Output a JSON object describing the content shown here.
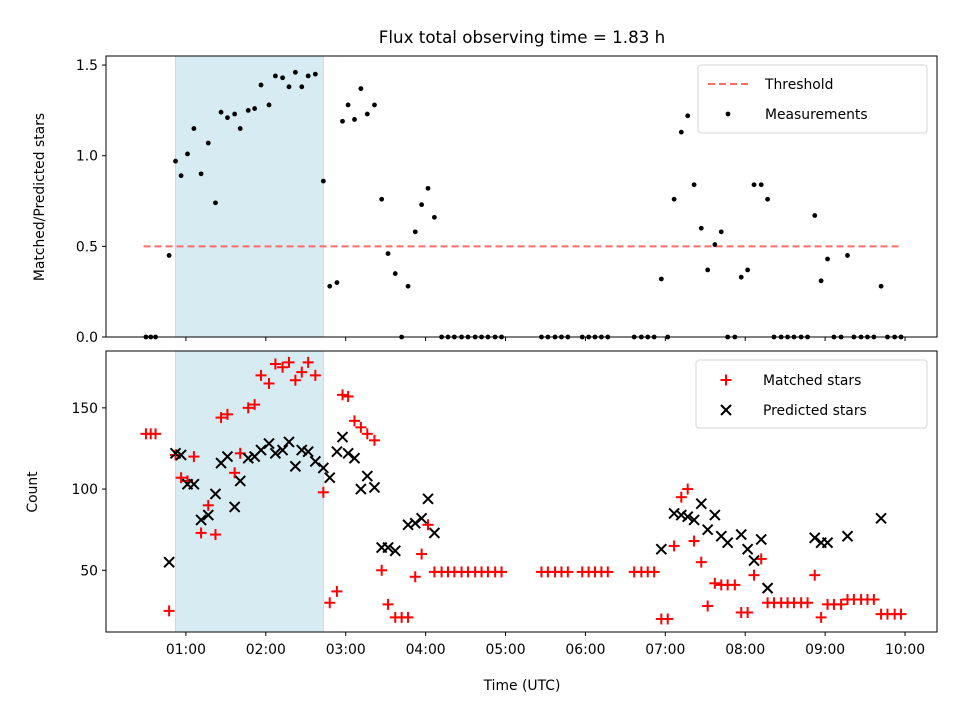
{
  "chart_data": [
    {
      "type": "scatter",
      "title": "Flux total observing time = 1.83 h",
      "xlabel": "",
      "ylabel": "Matched/Predicted stars",
      "xlim": [
        0.0,
        10.4
      ],
      "ylim": [
        0,
        1.55
      ],
      "yticks": [
        0,
        0.5,
        1.0,
        1.5
      ],
      "yticklabels": [
        "0.0",
        "0.5",
        "1.0",
        "1.5"
      ],
      "shaded_span": [
        0.87,
        2.72
      ],
      "legend_position": "top-right",
      "threshold": {
        "name": "Threshold",
        "value": 0.5,
        "x_range": [
          0.47,
          9.97
        ],
        "color": "#ff6b6b"
      },
      "series": [
        {
          "name": "Measurements",
          "color": "#000000",
          "points": [
            [
              0.5,
              0
            ],
            [
              0.56,
              0
            ],
            [
              0.62,
              0
            ],
            [
              0.79,
              0.45
            ],
            [
              0.87,
              0.97
            ],
            [
              0.94,
              0.89
            ],
            [
              1.02,
              1.01
            ],
            [
              1.1,
              1.15
            ],
            [
              1.19,
              0.9
            ],
            [
              1.28,
              1.07
            ],
            [
              1.37,
              0.74
            ],
            [
              1.44,
              1.24
            ],
            [
              1.52,
              1.21
            ],
            [
              1.61,
              1.23
            ],
            [
              1.68,
              1.15
            ],
            [
              1.78,
              1.25
            ],
            [
              1.86,
              1.26
            ],
            [
              1.94,
              1.39
            ],
            [
              2.04,
              1.28
            ],
            [
              2.12,
              1.44
            ],
            [
              2.21,
              1.43
            ],
            [
              2.29,
              1.38
            ],
            [
              2.37,
              1.46
            ],
            [
              2.45,
              1.38
            ],
            [
              2.53,
              1.44
            ],
            [
              2.62,
              1.45
            ],
            [
              2.72,
              0.86
            ],
            [
              2.8,
              0.28
            ],
            [
              2.89,
              0.3
            ],
            [
              2.96,
              1.19
            ],
            [
              3.03,
              1.28
            ],
            [
              3.11,
              1.2
            ],
            [
              3.19,
              1.37
            ],
            [
              3.27,
              1.23
            ],
            [
              3.36,
              1.28
            ],
            [
              3.45,
              0.76
            ],
            [
              3.53,
              0.46
            ],
            [
              3.62,
              0.35
            ],
            [
              3.7,
              0
            ],
            [
              3.78,
              0.28
            ],
            [
              3.87,
              0.58
            ],
            [
              3.95,
              0.73
            ],
            [
              4.03,
              0.82
            ],
            [
              4.11,
              0.66
            ],
            [
              4.2,
              0
            ],
            [
              4.28,
              0
            ],
            [
              4.36,
              0
            ],
            [
              4.45,
              0
            ],
            [
              4.53,
              0
            ],
            [
              4.62,
              0
            ],
            [
              4.7,
              0
            ],
            [
              4.78,
              0
            ],
            [
              4.87,
              0
            ],
            [
              4.95,
              0
            ],
            [
              5.45,
              0
            ],
            [
              5.53,
              0
            ],
            [
              5.62,
              0
            ],
            [
              5.7,
              0
            ],
            [
              5.78,
              0
            ],
            [
              5.96,
              0
            ],
            [
              6.04,
              0
            ],
            [
              6.12,
              0
            ],
            [
              6.2,
              0
            ],
            [
              6.28,
              0
            ],
            [
              6.61,
              0
            ],
            [
              6.7,
              0
            ],
            [
              6.78,
              0
            ],
            [
              6.86,
              0
            ],
            [
              6.95,
              0.32
            ],
            [
              7.03,
              0
            ],
            [
              7.11,
              0.76
            ],
            [
              7.2,
              1.13
            ],
            [
              7.28,
              1.22
            ],
            [
              7.36,
              0.84
            ],
            [
              7.45,
              0.6
            ],
            [
              7.53,
              0.37
            ],
            [
              7.62,
              0.51
            ],
            [
              7.7,
              0.58
            ],
            [
              7.78,
              0
            ],
            [
              7.87,
              0
            ],
            [
              7.95,
              0.33
            ],
            [
              8.03,
              0.37
            ],
            [
              8.11,
              0.84
            ],
            [
              8.2,
              0.84
            ],
            [
              8.28,
              0.76
            ],
            [
              8.36,
              0
            ],
            [
              8.45,
              0
            ],
            [
              8.53,
              0
            ],
            [
              8.61,
              0
            ],
            [
              8.7,
              0
            ],
            [
              8.78,
              0
            ],
            [
              8.87,
              0.67
            ],
            [
              8.95,
              0.31
            ],
            [
              9.03,
              0.43
            ],
            [
              9.11,
              0
            ],
            [
              9.2,
              0
            ],
            [
              9.28,
              0.45
            ],
            [
              9.36,
              0
            ],
            [
              9.45,
              0
            ],
            [
              9.53,
              0
            ],
            [
              9.61,
              0
            ],
            [
              9.7,
              0.28
            ],
            [
              9.78,
              0
            ],
            [
              9.87,
              0
            ],
            [
              9.95,
              0
            ]
          ]
        }
      ]
    },
    {
      "type": "scatter",
      "title": "",
      "xlabel": "Time (UTC)",
      "ylabel": "Count",
      "xlim": [
        0.0,
        10.4
      ],
      "ylim": [
        12,
        185
      ],
      "yticks": [
        50,
        100,
        150
      ],
      "yticklabels": [
        "50",
        "100",
        "150"
      ],
      "xticks": [
        1,
        2,
        3,
        4,
        5,
        6,
        7,
        8,
        9,
        10
      ],
      "xticklabels": [
        "01:00",
        "02:00",
        "03:00",
        "04:00",
        "05:00",
        "06:00",
        "07:00",
        "08:00",
        "09:00",
        "10:00"
      ],
      "shaded_span": [
        0.87,
        2.72
      ],
      "legend_position": "top-right",
      "series": [
        {
          "name": "Matched stars",
          "marker": "plus",
          "color": "#ff0000",
          "points": [
            [
              0.5,
              134
            ],
            [
              0.56,
              134
            ],
            [
              0.62,
              134
            ],
            [
              0.79,
              25
            ],
            [
              0.87,
              121
            ],
            [
              0.94,
              107
            ],
            [
              1.02,
              105
            ],
            [
              1.1,
              120
            ],
            [
              1.19,
              73
            ],
            [
              1.28,
              90
            ],
            [
              1.37,
              72
            ],
            [
              1.44,
              144
            ],
            [
              1.52,
              146
            ],
            [
              1.61,
              110
            ],
            [
              1.68,
              122
            ],
            [
              1.78,
              150
            ],
            [
              1.86,
              152
            ],
            [
              1.94,
              170
            ],
            [
              2.04,
              165
            ],
            [
              2.12,
              177
            ],
            [
              2.21,
              175
            ],
            [
              2.29,
              178
            ],
            [
              2.37,
              167
            ],
            [
              2.45,
              172
            ],
            [
              2.53,
              178
            ],
            [
              2.62,
              170
            ],
            [
              2.72,
              98
            ],
            [
              2.8,
              30
            ],
            [
              2.89,
              37
            ],
            [
              2.96,
              158
            ],
            [
              3.03,
              157
            ],
            [
              3.11,
              142
            ],
            [
              3.19,
              138
            ],
            [
              3.27,
              134
            ],
            [
              3.36,
              130
            ],
            [
              3.45,
              50
            ],
            [
              3.53,
              29
            ],
            [
              3.62,
              21
            ],
            [
              3.7,
              21
            ],
            [
              3.78,
              21
            ],
            [
              3.87,
              46
            ],
            [
              3.95,
              60
            ],
            [
              4.03,
              78
            ],
            [
              4.11,
              49
            ],
            [
              4.2,
              49
            ],
            [
              4.28,
              49
            ],
            [
              4.36,
              49
            ],
            [
              4.45,
              49
            ],
            [
              4.53,
              49
            ],
            [
              4.62,
              49
            ],
            [
              4.7,
              49
            ],
            [
              4.78,
              49
            ],
            [
              4.87,
              49
            ],
            [
              4.95,
              49
            ],
            [
              5.45,
              49
            ],
            [
              5.53,
              49
            ],
            [
              5.62,
              49
            ],
            [
              5.7,
              49
            ],
            [
              5.78,
              49
            ],
            [
              5.96,
              49
            ],
            [
              6.04,
              49
            ],
            [
              6.12,
              49
            ],
            [
              6.2,
              49
            ],
            [
              6.28,
              49
            ],
            [
              6.61,
              49
            ],
            [
              6.7,
              49
            ],
            [
              6.78,
              49
            ],
            [
              6.86,
              49
            ],
            [
              6.95,
              20
            ],
            [
              7.03,
              20
            ],
            [
              7.11,
              65
            ],
            [
              7.2,
              95
            ],
            [
              7.28,
              100
            ],
            [
              7.36,
              68
            ],
            [
              7.45,
              55
            ],
            [
              7.53,
              28
            ],
            [
              7.62,
              42
            ],
            [
              7.7,
              41
            ],
            [
              7.78,
              41
            ],
            [
              7.87,
              41
            ],
            [
              7.95,
              24
            ],
            [
              8.03,
              24
            ],
            [
              8.11,
              47
            ],
            [
              8.2,
              57
            ],
            [
              8.28,
              30
            ],
            [
              8.36,
              30
            ],
            [
              8.45,
              30
            ],
            [
              8.53,
              30
            ],
            [
              8.61,
              30
            ],
            [
              8.7,
              30
            ],
            [
              8.78,
              30
            ],
            [
              8.87,
              47
            ],
            [
              8.95,
              21
            ],
            [
              9.03,
              29
            ],
            [
              9.11,
              29
            ],
            [
              9.2,
              29
            ],
            [
              9.28,
              32
            ],
            [
              9.36,
              32
            ],
            [
              9.45,
              32
            ],
            [
              9.53,
              32
            ],
            [
              9.61,
              32
            ],
            [
              9.7,
              23
            ],
            [
              9.78,
              23
            ],
            [
              9.87,
              23
            ],
            [
              9.95,
              23
            ]
          ]
        },
        {
          "name": "Predicted stars",
          "marker": "x",
          "color": "#000000",
          "points": [
            [
              0.79,
              55
            ],
            [
              0.87,
              122
            ],
            [
              0.94,
              121
            ],
            [
              1.02,
              103
            ],
            [
              1.1,
              103
            ],
            [
              1.19,
              81
            ],
            [
              1.28,
              84
            ],
            [
              1.37,
              97
            ],
            [
              1.44,
              116
            ],
            [
              1.52,
              120
            ],
            [
              1.61,
              89
            ],
            [
              1.68,
              105
            ],
            [
              1.78,
              119
            ],
            [
              1.86,
              120
            ],
            [
              1.94,
              124
            ],
            [
              2.04,
              128
            ],
            [
              2.12,
              122
            ],
            [
              2.21,
              124
            ],
            [
              2.29,
              129
            ],
            [
              2.37,
              114
            ],
            [
              2.45,
              124
            ],
            [
              2.53,
              123
            ],
            [
              2.62,
              117
            ],
            [
              2.72,
              113
            ],
            [
              2.8,
              107
            ],
            [
              2.89,
              123
            ],
            [
              2.96,
              132
            ],
            [
              3.03,
              122
            ],
            [
              3.11,
              119
            ],
            [
              3.19,
              100
            ],
            [
              3.27,
              108
            ],
            [
              3.36,
              101
            ],
            [
              3.45,
              64
            ],
            [
              3.53,
              64
            ],
            [
              3.62,
              62
            ],
            [
              3.78,
              78
            ],
            [
              3.87,
              79
            ],
            [
              3.95,
              82
            ],
            [
              4.03,
              94
            ],
            [
              4.11,
              73
            ],
            [
              6.95,
              63
            ],
            [
              7.11,
              85
            ],
            [
              7.2,
              84
            ],
            [
              7.28,
              83
            ],
            [
              7.36,
              81
            ],
            [
              7.45,
              91
            ],
            [
              7.53,
              75
            ],
            [
              7.62,
              84
            ],
            [
              7.7,
              71
            ],
            [
              7.78,
              67
            ],
            [
              7.95,
              72
            ],
            [
              8.03,
              63
            ],
            [
              8.11,
              56
            ],
            [
              8.2,
              69
            ],
            [
              8.28,
              39
            ],
            [
              8.87,
              70
            ],
            [
              8.95,
              67
            ],
            [
              9.03,
              67
            ],
            [
              9.28,
              71
            ],
            [
              9.7,
              82
            ]
          ]
        }
      ]
    }
  ]
}
